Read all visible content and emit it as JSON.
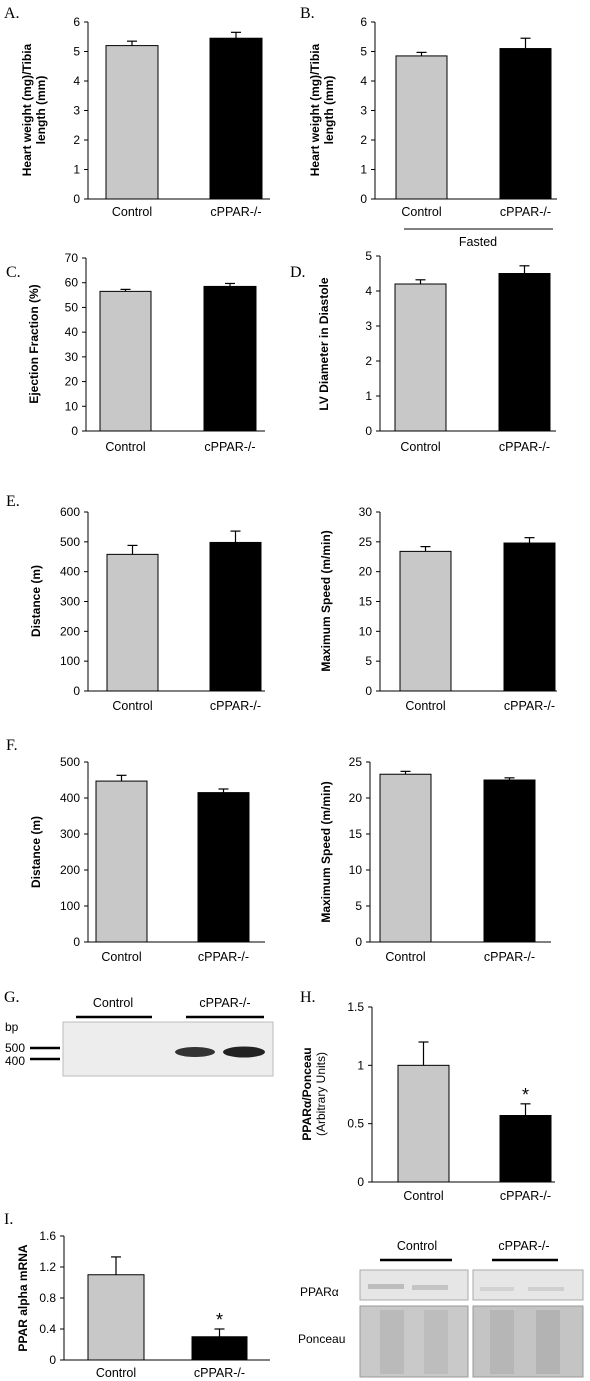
{
  "panel_labels": {
    "A": "A.",
    "B": "B.",
    "C": "C.",
    "D": "D.",
    "E": "E.",
    "F": "F.",
    "G": "G.",
    "H": "H.",
    "I": "I."
  },
  "colors": {
    "control_gray": "#c8c8c8",
    "control_gray_dark": "#a8a8a8",
    "cko_black": "#000000"
  },
  "chart_data": [
    {
      "id": "A",
      "type": "bar",
      "categories": [
        "Control",
        "cPPAR-/-"
      ],
      "values": [
        5.2,
        5.45
      ],
      "errors": [
        0.15,
        0.2
      ],
      "ylabel_lines": [
        "Heart weight (mg)/Tibia",
        "length (mm)"
      ],
      "ylim": [
        0,
        6
      ],
      "yticks": [
        "0",
        "1",
        "2",
        "3",
        "4",
        "5",
        "6"
      ],
      "xgroup": ""
    },
    {
      "id": "B",
      "type": "bar",
      "categories": [
        "Control",
        "cPPAR-/-"
      ],
      "values": [
        4.85,
        5.1
      ],
      "errors": [
        0.12,
        0.35
      ],
      "ylabel_lines": [
        "Heart weight (mg)/Tibia",
        "length (mm)"
      ],
      "ylim": [
        0,
        6
      ],
      "yticks": [
        "0",
        "1",
        "2",
        "3",
        "4",
        "5",
        "6"
      ],
      "xgroup": "Fasted"
    },
    {
      "id": "C",
      "type": "bar",
      "categories": [
        "Control",
        "cPPAR-/-"
      ],
      "values": [
        56.5,
        58.5
      ],
      "errors": [
        0.8,
        1.2
      ],
      "ylabel_lines": [
        "Ejection Fraction (%)"
      ],
      "ylim": [
        0,
        70
      ],
      "yticks": [
        "0",
        "10",
        "20",
        "30",
        "40",
        "50",
        "60",
        "70"
      ],
      "xgroup": ""
    },
    {
      "id": "D",
      "type": "bar",
      "categories": [
        "Control",
        "cPPAR-/-"
      ],
      "values": [
        4.2,
        4.5
      ],
      "errors": [
        0.12,
        0.22
      ],
      "ylabel_lines": [
        "LV Diameter in Diastole"
      ],
      "ylim": [
        0,
        5
      ],
      "yticks": [
        "0",
        "1",
        "2",
        "3",
        "4",
        "5"
      ],
      "xgroup": ""
    },
    {
      "id": "E1",
      "type": "bar",
      "categories": [
        "Control",
        "cPPAR-/-"
      ],
      "values": [
        458,
        498
      ],
      "errors": [
        30,
        38
      ],
      "ylabel_lines": [
        "Distance (m)"
      ],
      "ylim": [
        0,
        600
      ],
      "yticks": [
        "0",
        "100",
        "200",
        "300",
        "400",
        "500",
        "600"
      ],
      "xgroup": ""
    },
    {
      "id": "E2",
      "type": "bar",
      "categories": [
        "Control",
        "cPPAR-/-"
      ],
      "values": [
        23.4,
        24.8
      ],
      "errors": [
        0.8,
        0.9
      ],
      "ylabel_lines": [
        "Maximum Speed (m/min)"
      ],
      "ylim": [
        0,
        30
      ],
      "yticks": [
        "0",
        "5",
        "10",
        "15",
        "20",
        "25",
        "30"
      ],
      "xgroup": ""
    },
    {
      "id": "F1",
      "type": "bar",
      "categories": [
        "Control",
        "cPPAR-/-"
      ],
      "values": [
        447,
        415
      ],
      "errors": [
        16,
        10
      ],
      "ylabel_lines": [
        "Distance (m)"
      ],
      "ylim": [
        0,
        500
      ],
      "yticks": [
        "0",
        "100",
        "200",
        "300",
        "400",
        "500"
      ],
      "xgroup": ""
    },
    {
      "id": "F2",
      "type": "bar",
      "categories": [
        "Control",
        "cPPAR-/-"
      ],
      "values": [
        23.3,
        22.5
      ],
      "errors": [
        0.4,
        0.3
      ],
      "ylabel_lines": [
        "Maximum Speed (m/min)"
      ],
      "ylim": [
        0,
        25
      ],
      "yticks": [
        "0",
        "5",
        "10",
        "15",
        "20",
        "25"
      ],
      "xgroup": ""
    },
    {
      "id": "H",
      "type": "bar",
      "categories": [
        "Control",
        "cPPAR-/-"
      ],
      "values": [
        1.0,
        0.57
      ],
      "errors": [
        0.2,
        0.1
      ],
      "ylabel_lines": [
        "PPARα/Ponceau",
        "(Arbitrary Units)"
      ],
      "ylim": [
        0,
        1.5
      ],
      "yticks": [
        "0",
        "0.5",
        "1",
        "1.5"
      ],
      "xgroup": "",
      "significance": "*"
    },
    {
      "id": "I",
      "type": "bar",
      "categories": [
        "Control",
        "cPPAR-/-"
      ],
      "values": [
        1.1,
        0.3
      ],
      "errors": [
        0.23,
        0.1
      ],
      "ylabel_lines": [
        "PPAR alpha mRNA"
      ],
      "ylim": [
        0,
        1.6
      ],
      "yticks": [
        "0",
        "0.4",
        "0.8",
        "1.2",
        "1.6"
      ],
      "xgroup": "",
      "significance": "*"
    }
  ],
  "gel": {
    "control_label": "Control",
    "cko_label": "cPPAR-/-",
    "bp_label": "bp",
    "marker_500": "500",
    "marker_400": "400"
  },
  "western": {
    "control_label": "Control",
    "cko_label": "cPPAR-/-",
    "row1_label": "PPARα",
    "row2_label": "Ponceau"
  }
}
